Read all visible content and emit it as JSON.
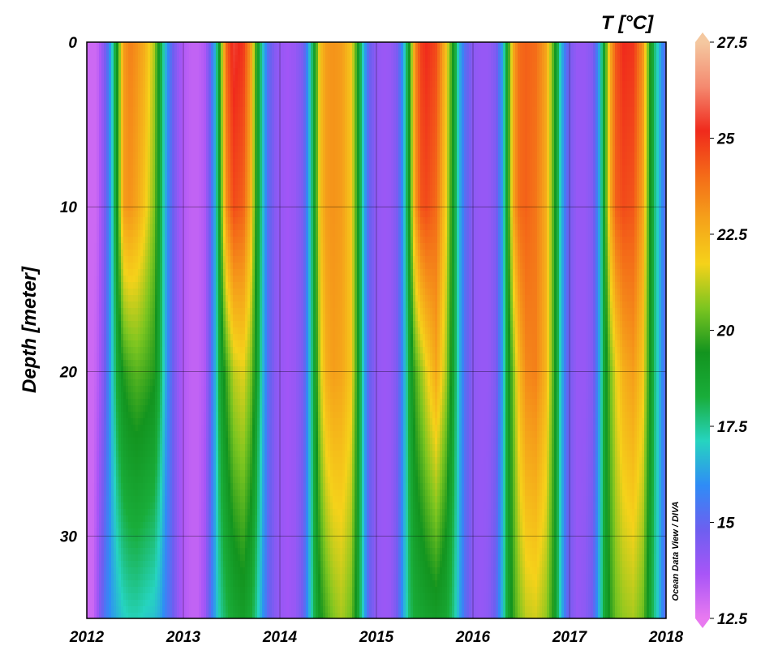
{
  "chart_data": {
    "type": "heatmap",
    "title": "T [°C]",
    "ylabel": "Depth [meter]",
    "xlabel": "",
    "credit": "Ocean Data View / DIVA",
    "xlim": [
      2012,
      2018
    ],
    "ylim": [
      0,
      35
    ],
    "y_inverted": true,
    "x_ticks": [
      "2012",
      "2013",
      "2014",
      "2015",
      "2016",
      "2017",
      "2018"
    ],
    "y_ticks": [
      "0",
      "10",
      "20",
      "30"
    ],
    "grid": true,
    "colorbar": {
      "ticks": [
        "12.5",
        "15",
        "17.5",
        "20",
        "22.5",
        "25",
        "27.5"
      ],
      "range": [
        12.5,
        27.5
      ],
      "colors": [
        "#e879f0",
        "#a855f7",
        "#6d5ff0",
        "#2f8cf6",
        "#26d4c0",
        "#19ad3a",
        "#13941f",
        "#7cc520",
        "#f5d21a",
        "#f5a21a",
        "#f46a18",
        "#f02a1c",
        "#f48a70",
        "#f4c8a0"
      ]
    },
    "temperature_series": {
      "years": [
        2012.0,
        2012.06,
        2012.1,
        2012.14,
        2012.2,
        2012.26,
        2012.32,
        2012.38,
        2012.45,
        2012.52,
        2012.6,
        2012.7,
        2012.76,
        2012.82,
        2012.88,
        2012.95,
        2013.0,
        2013.08,
        2013.15,
        2013.22,
        2013.27,
        2013.33,
        2013.38,
        2013.44,
        2013.52,
        2013.62,
        2013.7,
        2013.75,
        2013.82,
        2013.88,
        2013.95,
        2014.0,
        2014.08,
        2014.16,
        2014.24,
        2014.3,
        2014.36,
        2014.42,
        2014.48,
        2014.55,
        2014.64,
        2014.74,
        2014.8,
        2014.86,
        2014.92,
        2015.0,
        2015.08,
        2015.15,
        2015.22,
        2015.28,
        2015.34,
        2015.4,
        2015.46,
        2015.52,
        2015.62,
        2015.72,
        2015.8,
        2015.86,
        2015.92,
        2016.0,
        2016.08,
        2016.16,
        2016.24,
        2016.3,
        2016.36,
        2016.42,
        2016.48,
        2016.55,
        2016.65,
        2016.76,
        2016.84,
        2016.9,
        2016.96,
        2017.0,
        2017.08,
        2017.16,
        2017.24,
        2017.3,
        2017.36,
        2017.42,
        2017.48,
        2017.56,
        2017.66,
        2017.76,
        2017.82,
        2017.88,
        2017.94,
        2018.0
      ],
      "depth_0m": [
        13.0,
        13.0,
        13.0,
        13.6,
        14.8,
        16.8,
        19.6,
        23.0,
        23.6,
        23.2,
        22.6,
        21.0,
        18.5,
        16.5,
        15.0,
        14.0,
        13.5,
        13.2,
        13.2,
        13.5,
        14.6,
        16.6,
        19.6,
        24.0,
        25.5,
        25.0,
        23.0,
        20.0,
        17.0,
        15.2,
        14.3,
        14.0,
        13.8,
        14.0,
        14.6,
        16.4,
        19.0,
        22.2,
        23.0,
        23.2,
        23.0,
        22.0,
        19.6,
        17.0,
        15.0,
        14.1,
        13.9,
        14.0,
        14.6,
        16.4,
        19.2,
        23.4,
        24.8,
        25.2,
        24.6,
        22.2,
        19.0,
        16.6,
        15.2,
        14.2,
        14.0,
        14.0,
        14.5,
        16.2,
        19.2,
        22.8,
        24.0,
        24.2,
        24.0,
        22.8,
        19.8,
        17.2,
        15.4,
        14.6,
        14.0,
        14.0,
        14.4,
        16.0,
        19.0,
        22.6,
        24.4,
        25.2,
        25.0,
        23.2,
        20.2,
        17.8,
        16.4,
        15.0
      ],
      "depth_10m": [
        13.0,
        13.0,
        13.0,
        13.6,
        14.8,
        16.8,
        19.6,
        23.0,
        23.2,
        22.8,
        22.0,
        20.6,
        18.4,
        16.4,
        15.0,
        14.0,
        13.5,
        13.2,
        13.2,
        13.5,
        14.6,
        16.6,
        19.4,
        23.2,
        24.6,
        24.2,
        22.4,
        19.8,
        17.0,
        15.2,
        14.3,
        14.0,
        13.8,
        14.0,
        14.6,
        16.4,
        19.0,
        22.2,
        23.0,
        23.2,
        23.0,
        22.0,
        19.6,
        17.0,
        15.0,
        14.1,
        13.9,
        14.0,
        14.6,
        16.4,
        19.2,
        23.0,
        24.4,
        24.6,
        24.0,
        21.8,
        18.8,
        16.6,
        15.2,
        14.2,
        14.0,
        14.0,
        14.5,
        16.2,
        19.2,
        22.8,
        24.0,
        24.2,
        23.8,
        22.6,
        19.8,
        17.2,
        15.4,
        14.6,
        14.0,
        14.0,
        14.4,
        16.0,
        19.0,
        22.6,
        24.2,
        24.6,
        24.4,
        22.8,
        20.0,
        17.8,
        16.4,
        15.0
      ],
      "depth_20m": [
        13.0,
        13.0,
        13.2,
        13.8,
        15.0,
        16.8,
        18.6,
        19.6,
        20.0,
        20.2,
        20.0,
        19.6,
        18.2,
        16.4,
        15.0,
        14.0,
        13.5,
        13.2,
        13.2,
        13.5,
        14.6,
        16.6,
        18.6,
        19.8,
        21.2,
        21.6,
        20.6,
        19.2,
        16.8,
        15.2,
        14.3,
        14.0,
        13.8,
        14.0,
        14.6,
        16.4,
        18.8,
        21.4,
        22.6,
        23.0,
        22.8,
        22.0,
        19.6,
        17.0,
        15.0,
        14.1,
        13.9,
        14.0,
        14.6,
        16.2,
        18.4,
        20.0,
        20.8,
        21.6,
        22.8,
        21.0,
        18.6,
        16.6,
        15.2,
        14.2,
        14.0,
        14.0,
        14.5,
        16.2,
        18.8,
        20.6,
        22.4,
        23.4,
        23.6,
        22.4,
        19.8,
        17.2,
        15.4,
        14.6,
        14.0,
        14.0,
        14.4,
        16.0,
        18.6,
        20.4,
        21.6,
        22.6,
        23.0,
        22.0,
        19.8,
        17.8,
        16.4,
        15.0
      ],
      "depth_35m": [
        13.0,
        13.0,
        13.6,
        14.6,
        15.6,
        16.2,
        16.6,
        17.0,
        17.2,
        17.2,
        17.0,
        16.8,
        16.4,
        15.6,
        15.0,
        14.0,
        13.5,
        13.2,
        13.2,
        13.8,
        15.0,
        16.4,
        17.4,
        18.0,
        18.6,
        19.0,
        18.4,
        17.6,
        16.2,
        15.0,
        14.3,
        14.0,
        13.8,
        14.0,
        14.8,
        16.4,
        18.2,
        19.4,
        20.0,
        20.6,
        21.0,
        20.4,
        19.0,
        17.0,
        15.0,
        14.1,
        13.9,
        14.0,
        14.8,
        16.4,
        17.8,
        18.4,
        18.6,
        18.8,
        19.0,
        18.6,
        17.6,
        16.4,
        15.2,
        14.2,
        14.0,
        14.2,
        15.0,
        16.6,
        18.6,
        19.8,
        20.6,
        21.2,
        21.4,
        20.8,
        19.4,
        17.2,
        15.4,
        14.6,
        14.0,
        14.2,
        14.8,
        16.4,
        18.4,
        19.6,
        20.4,
        20.8,
        21.0,
        20.4,
        19.0,
        17.6,
        16.4,
        15.0
      ]
    }
  }
}
